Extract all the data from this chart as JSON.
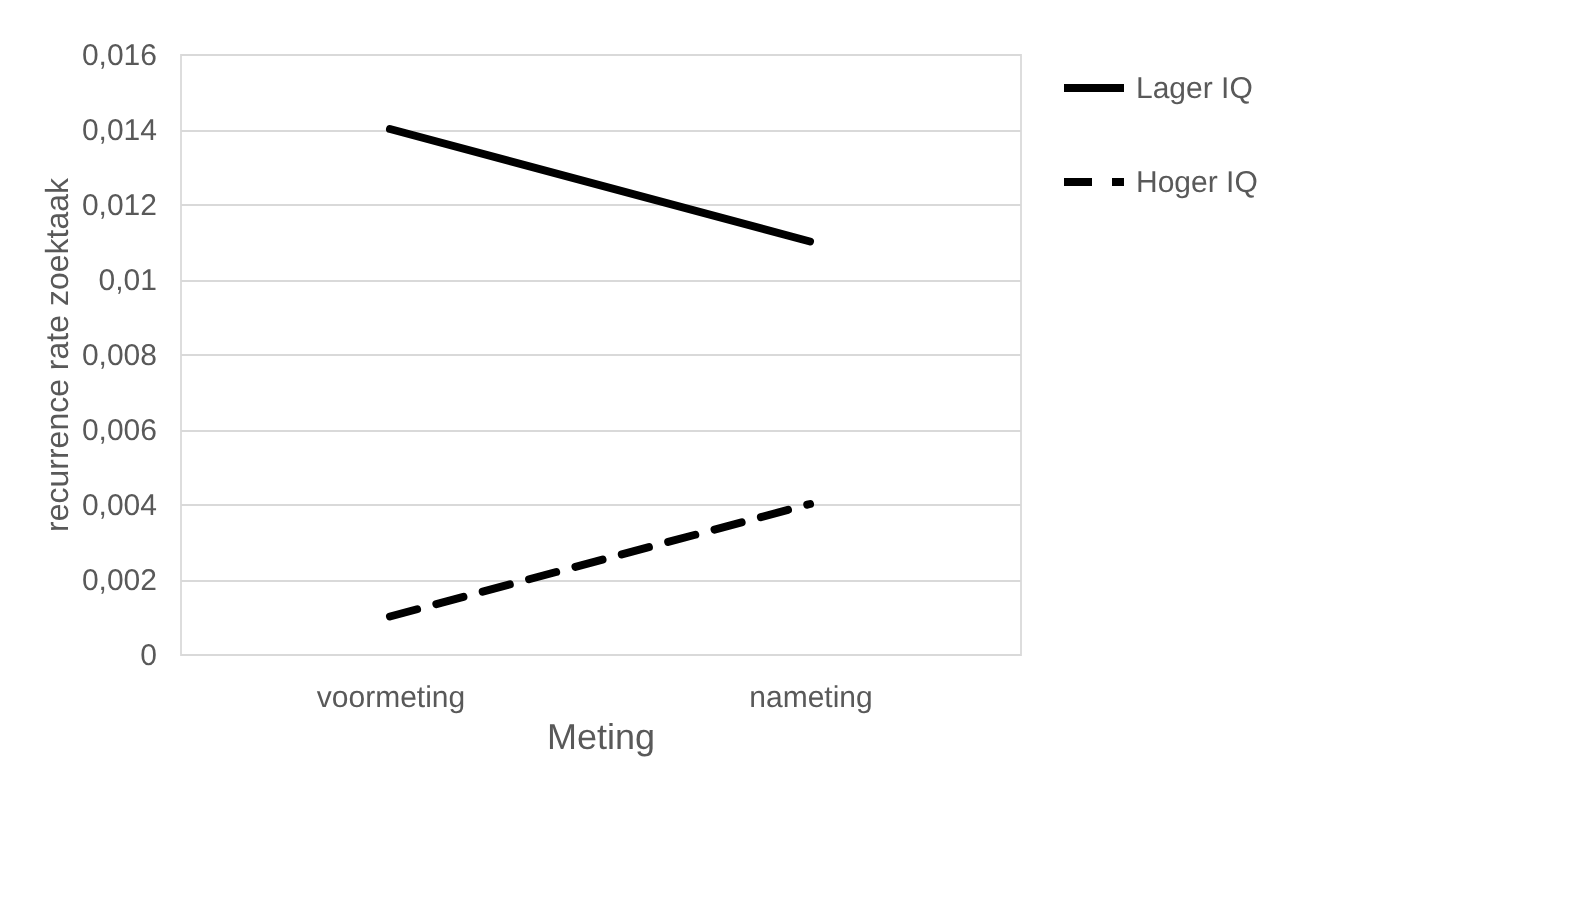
{
  "chart_data": {
    "type": "line",
    "xlabel": "Meting",
    "ylabel": "recurrence rate zoektaak",
    "categories": [
      "voormeting",
      "nameting"
    ],
    "series": [
      {
        "name": "Lager IQ",
        "color": "#000000",
        "values": [
          0.014,
          0.011
        ],
        "line_style": "solid"
      },
      {
        "name": "Hoger IQ",
        "color": "#000000",
        "values": [
          0.001,
          0.004
        ],
        "line_style": "dashed"
      }
    ],
    "ylim": [
      0,
      0.016
    ],
    "yticks": [
      0,
      {
        "value": 0.002,
        "label": "0,002"
      },
      {
        "value": 0.004,
        "label": "0,004"
      },
      {
        "value": 0.006,
        "label": "0,006"
      },
      {
        "value": 0.008,
        "label": "0,008"
      },
      {
        "value": 0.01,
        "label": "0,01"
      },
      {
        "value": 0.012,
        "label": "0,012"
      },
      {
        "value": 0.014,
        "label": "0,014"
      },
      {
        "value": 0.016,
        "label": "0,016"
      }
    ],
    "grid": "y",
    "legend": "right",
    "marker": "none"
  }
}
